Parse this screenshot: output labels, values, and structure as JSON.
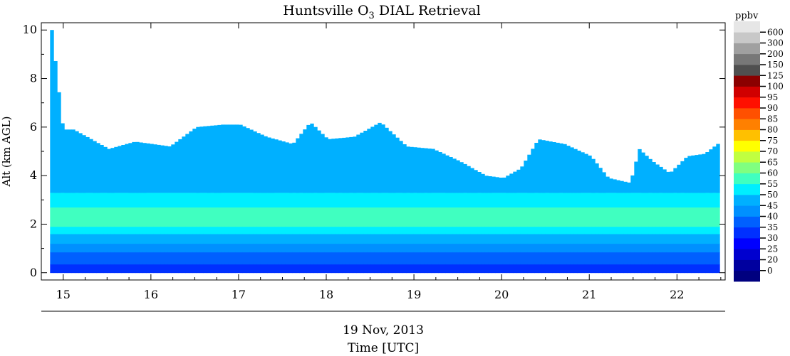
{
  "chart_data": {
    "type": "heatmap",
    "title_main": "Huntsville O",
    "title_sub": "3",
    "title_rest": " DIAL Retrieval",
    "xlabel": "Time [UTC]",
    "date_label": "19 Nov, 2013",
    "ylabel": "Alt (km AGL)",
    "xlim": [
      14.75,
      22.55
    ],
    "ylim": [
      -0.3,
      10.3
    ],
    "xticks": [
      "15",
      "16",
      "17",
      "18",
      "19",
      "20",
      "21",
      "22"
    ],
    "yticks": [
      "0",
      "2",
      "4",
      "6",
      "8",
      "10"
    ],
    "colorbar": {
      "units": "ppbv",
      "levels": [
        "0",
        "20",
        "25",
        "30",
        "35",
        "40",
        "45",
        "50",
        "55",
        "60",
        "65",
        "70",
        "75",
        "80",
        "85",
        "90",
        "95",
        "100",
        "125",
        "150",
        "200",
        "300",
        "600"
      ],
      "colors": [
        "#00007f",
        "#00009f",
        "#0000cf",
        "#0000ff",
        "#0030ff",
        "#0060ff",
        "#0090ff",
        "#00b0ff",
        "#00eeff",
        "#40ffc0",
        "#80ff80",
        "#c0ff40",
        "#ffff00",
        "#ffc000",
        "#ff8000",
        "#ff5000",
        "#ff1000",
        "#d00000",
        "#8b0000",
        "#505050",
        "#787878",
        "#a0a0a0",
        "#c8c8c8",
        "#e6e6e6"
      ]
    },
    "profile_layers": [
      {
        "bottom_km": 0.0,
        "top_km": 0.35,
        "ppbv": "35-40"
      },
      {
        "bottom_km": 0.35,
        "top_km": 0.85,
        "ppbv": "40-45"
      },
      {
        "bottom_km": 0.85,
        "top_km": 1.2,
        "ppbv": "45-50"
      },
      {
        "bottom_km": 1.2,
        "top_km": 1.6,
        "ppbv": "50-55"
      },
      {
        "bottom_km": 1.6,
        "top_km": 1.9,
        "ppbv": "55-60"
      },
      {
        "bottom_km": 1.9,
        "top_km": 2.7,
        "ppbv": "60-65"
      },
      {
        "bottom_km": 2.7,
        "top_km": 3.3,
        "ppbv": "55-60"
      },
      {
        "bottom_km": 3.3,
        "top_km": "data_top",
        "ppbv": "50-55"
      }
    ],
    "data_top_km": {
      "hours": [
        14.85,
        14.98,
        15.1,
        15.5,
        15.8,
        16.2,
        16.5,
        16.8,
        17.0,
        17.3,
        17.6,
        17.8,
        18.0,
        18.3,
        18.6,
        18.9,
        19.2,
        19.5,
        19.8,
        20.0,
        20.2,
        20.4,
        20.7,
        21.0,
        21.2,
        21.45,
        21.55,
        21.7,
        21.9,
        22.1,
        22.3,
        22.48
      ],
      "top_km": [
        10.0,
        5.9,
        5.9,
        5.1,
        5.4,
        5.2,
        6.0,
        6.1,
        6.1,
        5.6,
        5.3,
        6.2,
        5.5,
        5.6,
        6.2,
        5.2,
        5.1,
        4.6,
        4.0,
        3.9,
        4.3,
        5.5,
        5.3,
        4.8,
        3.9,
        3.7,
        5.1,
        4.6,
        4.1,
        4.8,
        4.9,
        5.4
      ]
    }
  }
}
